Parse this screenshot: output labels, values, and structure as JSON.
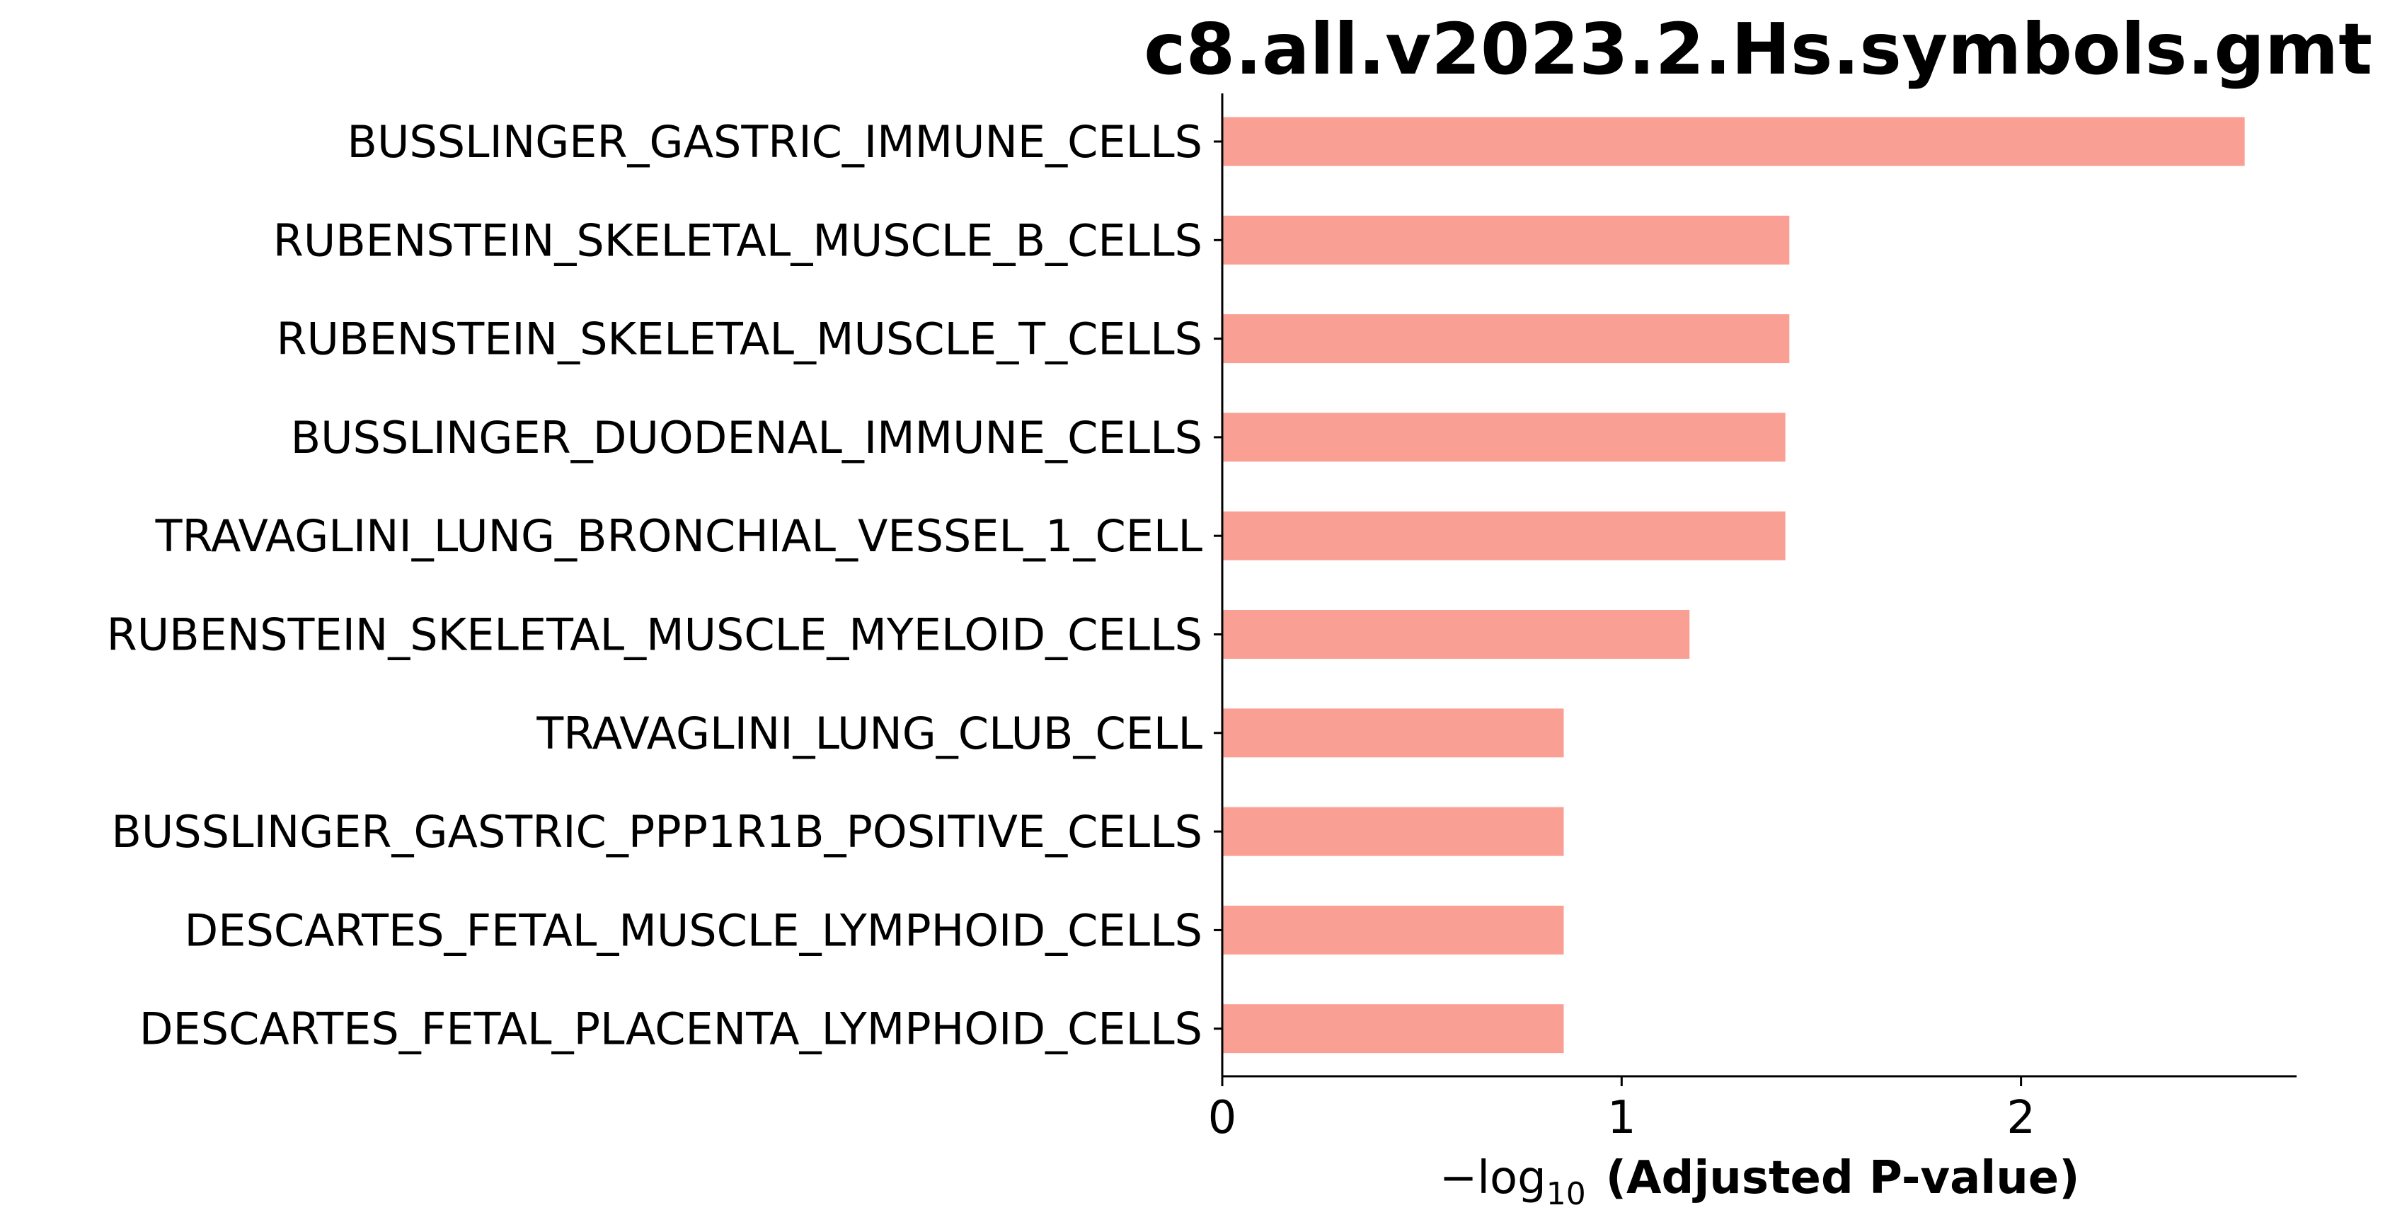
{
  "chart_data": {
    "type": "bar",
    "orientation": "horizontal",
    "title": "c8.all.v2023.2.Hs.symbols.gmt",
    "xlabel": {
      "prefix": "−log",
      "subscript": "10",
      "suffix": "(Adjusted P-value)"
    },
    "ylabel": "",
    "categories": [
      "BUSSLINGER_GASTRIC_IMMUNE_CELLS",
      "RUBENSTEIN_SKELETAL_MUSCLE_B_CELLS",
      "RUBENSTEIN_SKELETAL_MUSCLE_T_CELLS",
      "BUSSLINGER_DUODENAL_IMMUNE_CELLS",
      "TRAVAGLINI_LUNG_BRONCHIAL_VESSEL_1_CELL",
      "RUBENSTEIN_SKELETAL_MUSCLE_MYELOID_CELLS",
      "TRAVAGLINI_LUNG_CLUB_CELL",
      "BUSSLINGER_GASTRIC_PPP1R1B_POSITIVE_CELLS",
      "DESCARTES_FETAL_MUSCLE_LYMPHOID_CELLS",
      "DESCARTES_FETAL_PLACENTA_LYMPHOID_CELLS"
    ],
    "values": [
      2.56,
      1.42,
      1.42,
      1.41,
      1.41,
      1.17,
      0.855,
      0.855,
      0.855,
      0.855
    ],
    "xlim": [
      0,
      2.69
    ],
    "xticks": [
      0,
      1,
      2
    ],
    "xtick_labels": [
      "0",
      "1",
      "2"
    ],
    "grid": false,
    "legend": "none",
    "bar_color": "#fa9f94"
  }
}
